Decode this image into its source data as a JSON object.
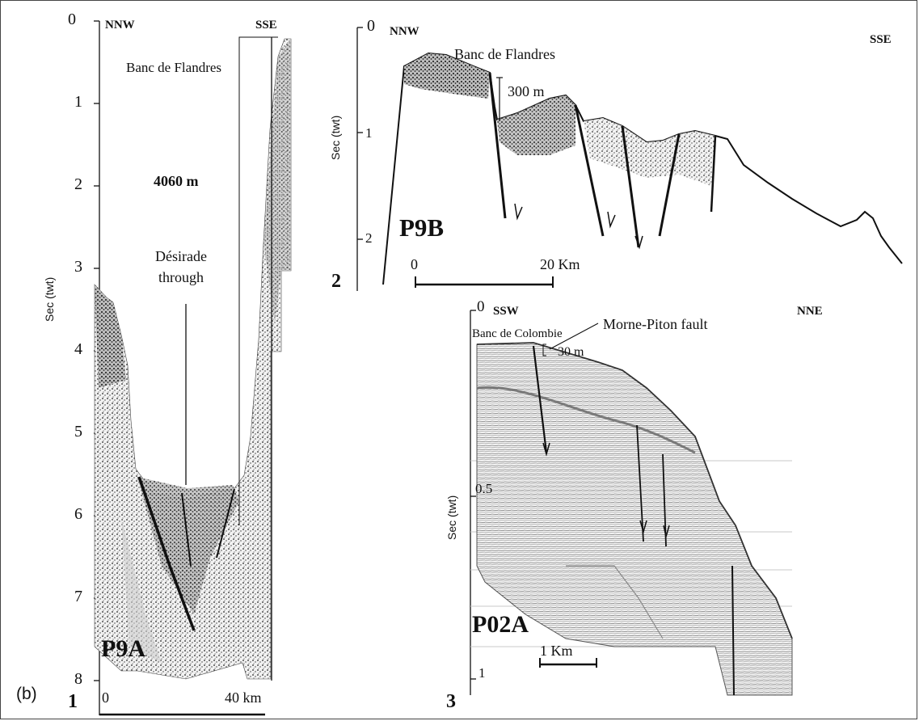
{
  "figure_label": "(b)",
  "panel1": {
    "index": "1",
    "profile_id": "P9A",
    "left_dir": "NNW",
    "right_dir": "SSE",
    "feature": "Banc de Flandres",
    "depth_label": "4060 m",
    "trough_label_line1": "Désirade",
    "trough_label_line2": "through",
    "y_axis_label": "Sec (twt)",
    "y_ticks": [
      "0",
      "1",
      "2",
      "3",
      "4",
      "5",
      "6",
      "7",
      "8"
    ],
    "scale_start": "0",
    "scale_end": "40 km"
  },
  "panel2": {
    "index": "2",
    "profile_id": "P9B",
    "left_dir": "NNW",
    "right_dir": "SSE",
    "feature": "Banc de Flandres",
    "offset_label": "300 m",
    "y_axis_label": "Sec (twt)",
    "y_ticks": [
      "0",
      "1",
      "2"
    ],
    "scale_start": "0",
    "scale_end": "20 Km"
  },
  "panel3": {
    "index": "3",
    "profile_id": "P02A",
    "left_dir": "SSW",
    "right_dir": "NNE",
    "bank": "Banc de Colombie",
    "fault": "Morne-Piton fault",
    "offset_label": "30 m",
    "y_axis_label": "Sec (twt)",
    "y_ticks": [
      "0",
      "0.5",
      "1"
    ],
    "scale_label": "1 Km"
  }
}
